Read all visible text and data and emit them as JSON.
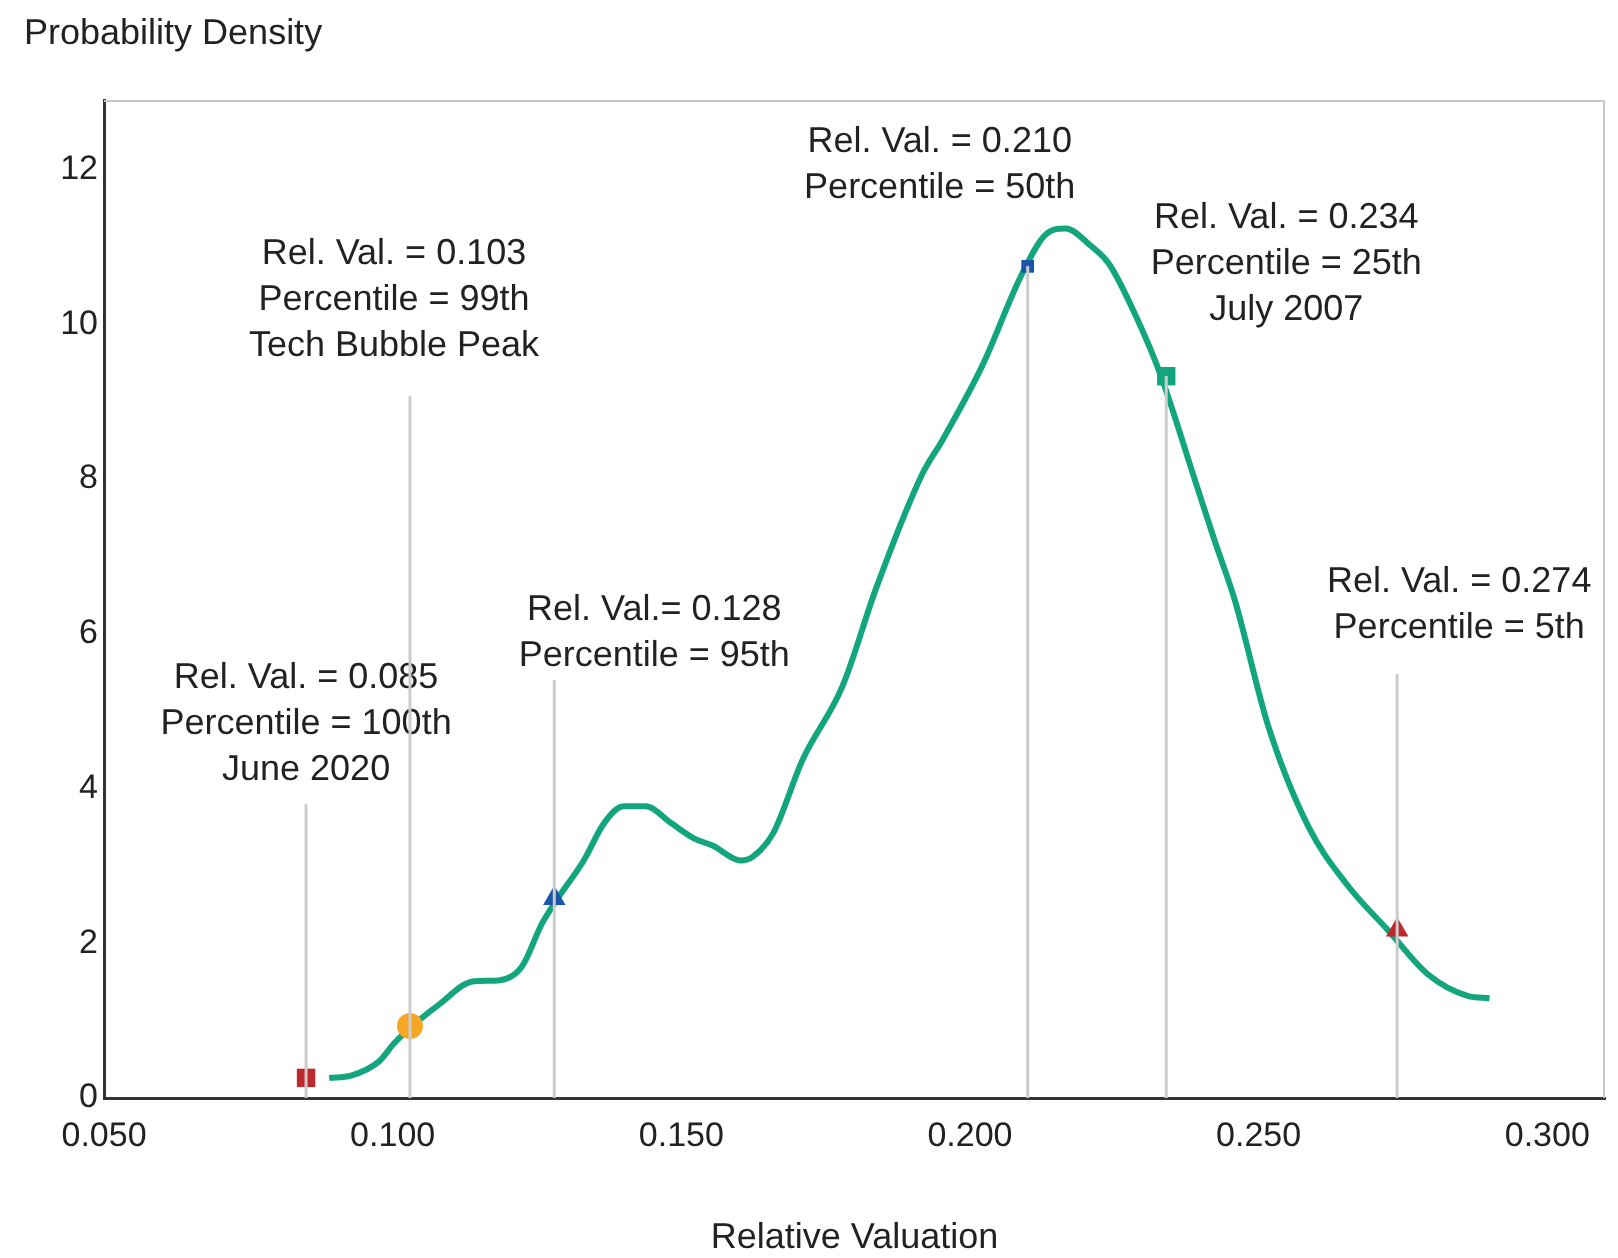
{
  "chart_data": {
    "type": "line",
    "xlabel": "Relative Valuation",
    "ylabel": "Probability Density",
    "xlim": [
      0.05,
      0.31
    ],
    "xticks": [
      {
        "value": 0.05,
        "label": "0.050"
      },
      {
        "value": 0.1,
        "label": "0.100"
      },
      {
        "value": 0.15,
        "label": "0.150"
      },
      {
        "value": 0.2,
        "label": "0.200"
      },
      {
        "value": 0.25,
        "label": "0.250"
      },
      {
        "value": 0.3,
        "label": "0.300"
      }
    ],
    "ylim": [
      0,
      12.9
    ],
    "yticks": [
      0,
      2,
      4,
      6,
      8,
      10,
      12
    ],
    "grid": false,
    "legend": false,
    "series": [
      {
        "type": "line",
        "color": "#13a57e",
        "marker": "none",
        "line_style": "solid",
        "x": [
          0.089,
          0.0928,
          0.0976,
          0.1003,
          0.1034,
          0.1079,
          0.1141,
          0.1183,
          0.1224,
          0.1259,
          0.1286,
          0.1331,
          0.1366,
          0.14,
          0.1438,
          0.1483,
          0.1521,
          0.1555,
          0.1603,
          0.1624,
          0.1659,
          0.171,
          0.1779,
          0.1838,
          0.1917,
          0.1952,
          0.2021,
          0.209,
          0.2131,
          0.2166,
          0.2207,
          0.2241,
          0.2286,
          0.2331,
          0.239,
          0.2424,
          0.2459,
          0.2517,
          0.2586,
          0.2655,
          0.2724,
          0.2793,
          0.2862,
          0.29
        ],
        "values": [
          0.26,
          0.29,
          0.47,
          0.71,
          0.93,
          1.2,
          1.51,
          1.52,
          1.7,
          2.26,
          2.58,
          3.07,
          3.55,
          3.77,
          3.77,
          3.55,
          3.36,
          3.26,
          3.07,
          3.12,
          3.42,
          4.37,
          5.32,
          6.6,
          8.06,
          8.5,
          9.46,
          10.65,
          11.16,
          11.24,
          11.03,
          10.78,
          10.13,
          9.33,
          7.98,
          7.2,
          6.43,
          4.8,
          3.51,
          2.74,
          2.17,
          1.6,
          1.32,
          1.29
        ]
      },
      {
        "type": "scatter",
        "color": "#c0282d",
        "marker": "square",
        "x": [
          0.085
        ],
        "values": [
          0.26
        ]
      },
      {
        "type": "scatter",
        "color": "#f5a623",
        "marker": "circle",
        "x": [
          0.103
        ],
        "values": [
          0.93
        ]
      },
      {
        "type": "scatter",
        "color": "#1a56a8",
        "marker": "triangle",
        "x": [
          0.128
        ],
        "values": [
          2.58
        ]
      },
      {
        "type": "scatter",
        "color": "#1a56a8",
        "marker": "square",
        "x": [
          0.21
        ],
        "values": [
          10.75
        ]
      },
      {
        "type": "scatter",
        "color": "#13a57e",
        "marker": "square",
        "x": [
          0.234
        ],
        "values": [
          9.33
        ]
      },
      {
        "type": "scatter",
        "color": "#c0282d",
        "marker": "triangle",
        "x": [
          0.274
        ],
        "values": [
          2.17
        ]
      }
    ],
    "ref_lines": [
      {
        "axis": "x",
        "value": 0.085,
        "label": "Rel. Val. = 0.085\nPercentile = 100th\nJune 2020",
        "color": "#cccccc"
      },
      {
        "axis": "x",
        "value": 0.103,
        "label": "Rel. Val. = 0.103\nPercentile = 99th\nTech Bubble Peak",
        "color": "#cccccc"
      },
      {
        "axis": "x",
        "value": 0.128,
        "label": "Rel. Val.= 0.128\nPercentile = 95th",
        "color": "#cccccc"
      },
      {
        "axis": "x",
        "value": 0.21,
        "label": "Rel. Val. = 0.210\nPercentile = 50th",
        "color": "#cccccc"
      },
      {
        "axis": "x",
        "value": 0.234,
        "label": "Rel. Val. = 0.234\nPercentile = 25th\nJuly 2007",
        "color": "#cccccc"
      },
      {
        "axis": "x",
        "value": 0.274,
        "label": "Rel. Val. = 0.274\nPercentile = 5th",
        "color": "#cccccc"
      }
    ]
  }
}
